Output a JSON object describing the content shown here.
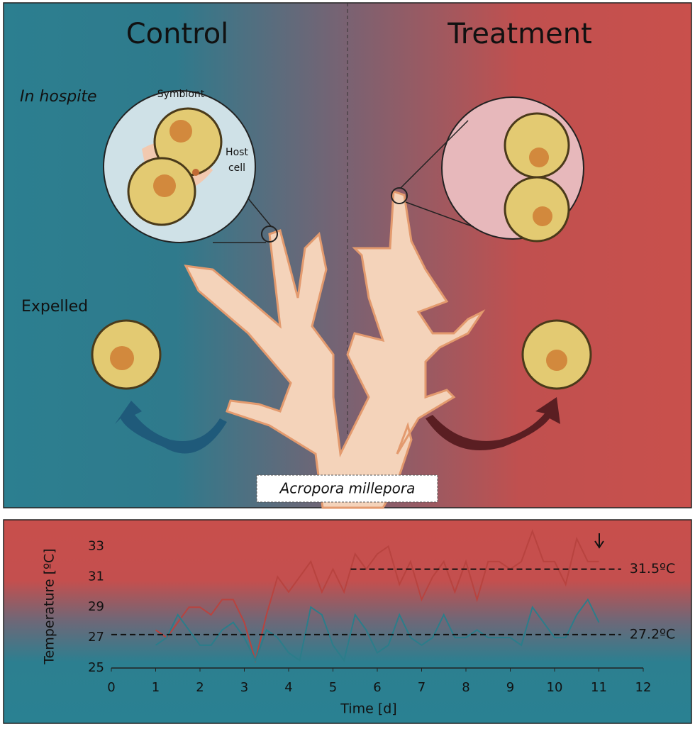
{
  "diagram": {
    "control_label": "Control",
    "treatment_label": "Treatment",
    "in_hospite": "In hospite",
    "symbiont": "Symbiont",
    "host": "Host",
    "cell": "cell",
    "expelled": "Expelled",
    "species": "Acropora millepora"
  },
  "chart_data": {
    "type": "line",
    "x_label": "Time [d]",
    "y_label": "Temperature [ºC]",
    "xlim": [
      0,
      12
    ],
    "xticks": [
      0,
      1,
      2,
      3,
      4,
      5,
      6,
      7,
      8,
      9,
      10,
      11,
      12
    ],
    "ylim": [
      25,
      34
    ],
    "yticks": [
      25,
      27,
      29,
      31,
      33
    ],
    "x": [
      1,
      1.25,
      1.5,
      1.75,
      2,
      2.25,
      2.5,
      2.75,
      3,
      3.25,
      3.5,
      3.75,
      4,
      4.25,
      4.5,
      4.75,
      5,
      5.25,
      5.5,
      5.75,
      6,
      6.25,
      6.5,
      6.75,
      7,
      7.25,
      7.5,
      7.75,
      8,
      8.25,
      8.5,
      8.75,
      9,
      9.25,
      9.5,
      9.75,
      10,
      10.25,
      10.5,
      10.75,
      11
    ],
    "series": [
      {
        "color": "#b8433f",
        "values": [
          27.5,
          27,
          28,
          29,
          29,
          28.5,
          29.5,
          29.5,
          28,
          25.5,
          28.5,
          31,
          30,
          31,
          32,
          30,
          31.5,
          30,
          32.5,
          31.5,
          32.5,
          33,
          30.5,
          32,
          29.5,
          31,
          32,
          30,
          32,
          29.5,
          32,
          32,
          31.5,
          32,
          34,
          32,
          32,
          30.5,
          33.5,
          32,
          32
        ]
      },
      {
        "color": "#2b7d8a",
        "values": [
          26.5,
          27,
          28.5,
          27.5,
          26.5,
          26.5,
          27.5,
          28,
          27,
          25.5,
          27.5,
          27,
          26,
          25.5,
          29,
          28.5,
          26.5,
          25.5,
          28.5,
          27.5,
          26,
          26.5,
          28.5,
          27,
          26.5,
          27,
          28.5,
          27,
          27,
          27.5,
          27,
          27,
          27,
          26.5,
          29,
          28,
          27,
          27,
          28.5,
          29.5,
          28
        ]
      }
    ],
    "reference_lines": [
      {
        "value": 31.5,
        "label": "31.5ºC",
        "x": [
          5.4,
          11.5
        ]
      },
      {
        "value": 27.2,
        "label": "27.2ºC",
        "x": [
          0,
          11.5
        ]
      }
    ]
  }
}
